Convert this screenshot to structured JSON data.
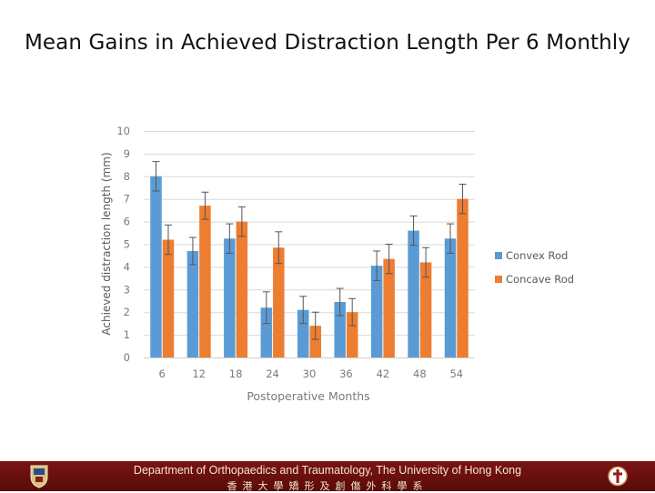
{
  "slide": {
    "title": "Mean Gains in Achieved Distraction Length Per 6 Monthly"
  },
  "chart_data": {
    "type": "bar",
    "title": "",
    "xlabel": "Postoperative Months",
    "ylabel": "Achieved distraction length (mm)",
    "ylim": [
      0,
      10
    ],
    "yticks": [
      0,
      1,
      2,
      3,
      4,
      5,
      6,
      7,
      8,
      9,
      10
    ],
    "grid": true,
    "legend_position": "right",
    "categories": [
      "6",
      "12",
      "18",
      "24",
      "30",
      "36",
      "42",
      "48",
      "54"
    ],
    "series": [
      {
        "name": "Convex Rod",
        "color": "#5b9bd5",
        "values": [
          8.0,
          4.7,
          5.25,
          2.2,
          2.1,
          2.45,
          4.05,
          5.6,
          5.25
        ],
        "errors": [
          0.65,
          0.6,
          0.65,
          0.7,
          0.6,
          0.6,
          0.65,
          0.65,
          0.65
        ]
      },
      {
        "name": "Concave Rod",
        "color": "#ed7d31",
        "values": [
          5.2,
          6.7,
          6.0,
          4.85,
          1.4,
          2.0,
          4.35,
          4.2,
          7.0
        ]
      }
    ]
  },
  "footer": {
    "department": "Department of Orthopaedics and Traumatology, The University of Hong Kong",
    "department_chinese": "香港大學矯形及創傷外科學系",
    "left_logo": "university-crest-icon",
    "right_logo": "department-emblem-icon",
    "background_color": "#6e1010"
  }
}
